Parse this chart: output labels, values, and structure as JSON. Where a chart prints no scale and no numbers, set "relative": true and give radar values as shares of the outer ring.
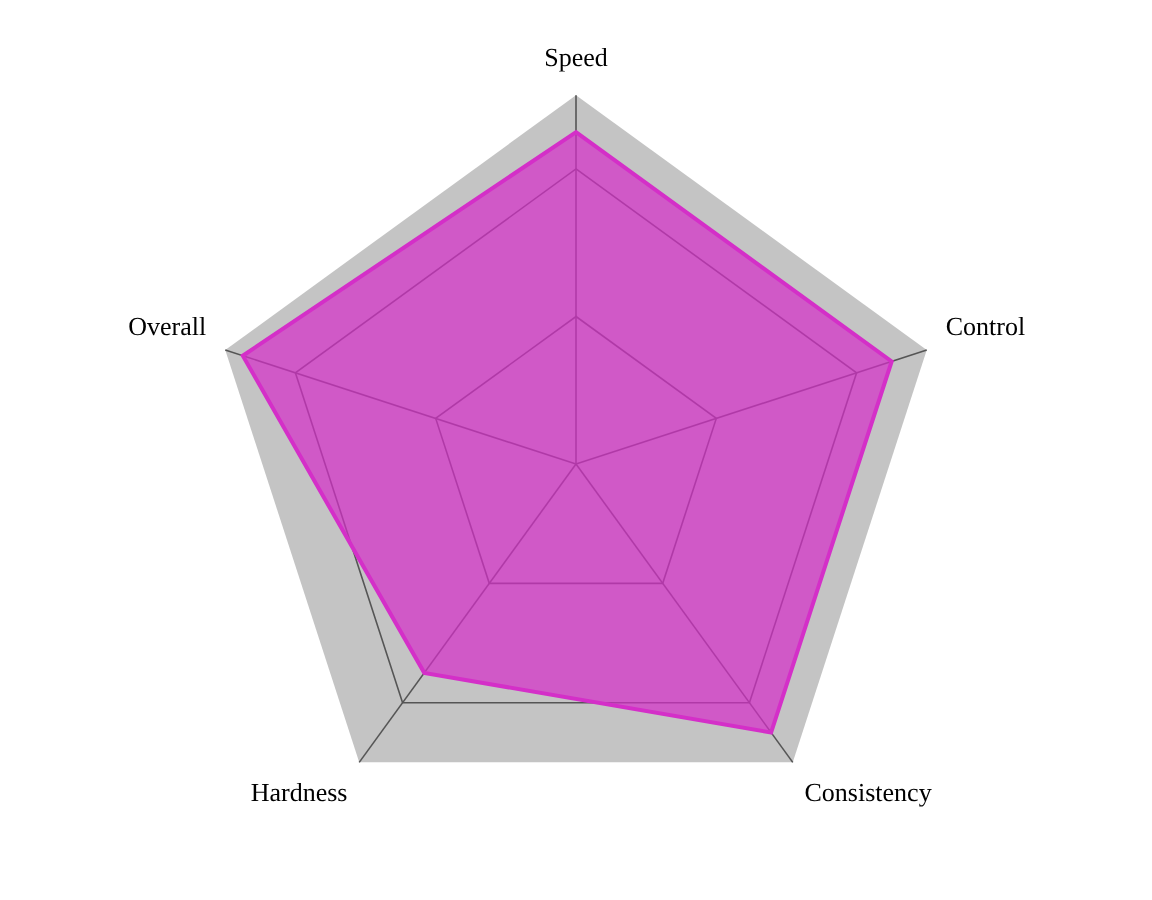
{
  "chart_data": {
    "type": "radar",
    "relative": true,
    "categories": [
      "Speed",
      "Control",
      "Consistency",
      "Hardness",
      "Overall"
    ],
    "series": [
      {
        "color": "#d42fc8",
        "values": [
          0.9,
          0.9,
          0.9,
          0.7,
          0.95
        ]
      }
    ],
    "legend": false
  }
}
